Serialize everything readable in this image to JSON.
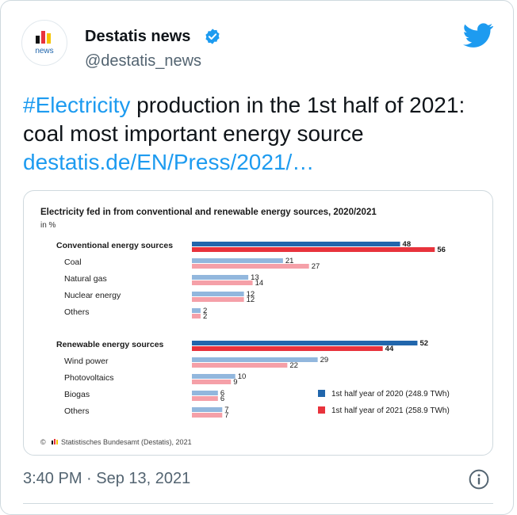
{
  "tweet": {
    "author_name": "Destatis news",
    "handle": "@destatis_news",
    "avatar_label": "news",
    "text_hashtag": "#Electricity",
    "text_body": " production in the 1st half of 2021: coal most important energy source ",
    "text_link": "destatis.de/EN/Press/2021/…",
    "timestamp": "3:40 PM · Sep 13, 2021",
    "colors": {
      "link": "#1d9bf0",
      "verified": "#1d9bf0",
      "bird": "#1d9bf0"
    }
  },
  "chart_data": {
    "type": "bar",
    "title": "Electricity fed in from conventional and renewable energy sources, 2020/2021",
    "subtitle": "in %",
    "source": "Statistisches Bundesamt (Destatis), 2021",
    "categories": [
      "Conventional energy sources",
      "Coal",
      "Natural gas",
      "Nuclear energy",
      "Others",
      "Renewable energy sources",
      "Wind power",
      "Photovoltaics",
      "Biogas",
      "Others"
    ],
    "category_bold": [
      true,
      false,
      false,
      false,
      false,
      true,
      false,
      false,
      false,
      false
    ],
    "series": [
      {
        "name": "1st half year of 2020 (248.9 TWh)",
        "values": [
          48,
          21,
          13,
          12,
          2,
          52,
          29,
          10,
          6,
          7
        ],
        "color": "#2166ac",
        "light_color": "#92b7dd"
      },
      {
        "name": "1st half year of 2021 (258.9 TWh)",
        "values": [
          56,
          27,
          14,
          12,
          2,
          44,
          22,
          9,
          6,
          7
        ],
        "color": "#e8333c",
        "light_color": "#f5a0a8"
      }
    ],
    "xlim": [
      0,
      60
    ],
    "legend_position": "bottom-right",
    "grid": false
  }
}
